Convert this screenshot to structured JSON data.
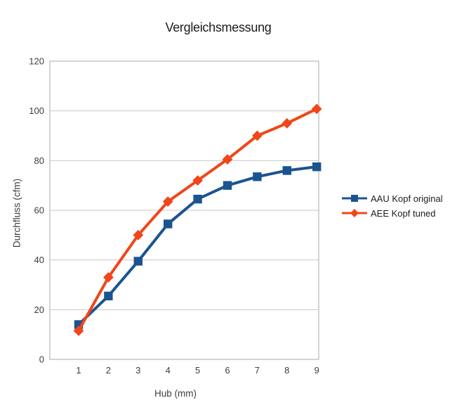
{
  "chart_data": {
    "type": "line",
    "title": "Vergleichsmessung",
    "xlabel": "Hub (mm)",
    "ylabel": "Durchfluss (cfm)",
    "categories": [
      1,
      2,
      3,
      4,
      5,
      6,
      7,
      8,
      9
    ],
    "series": [
      {
        "name": "AAU Kopf original",
        "marker": "square",
        "color": "#1a5490",
        "values": [
          14,
          25.5,
          39.5,
          54.5,
          64.5,
          70,
          73.5,
          76,
          77.5
        ]
      },
      {
        "name": "AEE Kopf tuned",
        "marker": "diamond",
        "color": "#f0461a",
        "values": [
          11.5,
          33,
          50,
          63.5,
          72,
          80.5,
          90,
          95,
          100.8
        ]
      }
    ],
    "ylim": [
      0,
      120
    ],
    "ytick_step": 20,
    "grid": "horizontal-only",
    "legend_position": "right-middle",
    "colors": {
      "background": "#ffffff",
      "gridline": "#c9c9c9",
      "plot_border": "#c3c7ca",
      "axis_text": "#3d3d3d",
      "title_text": "#1c1c1c"
    }
  }
}
